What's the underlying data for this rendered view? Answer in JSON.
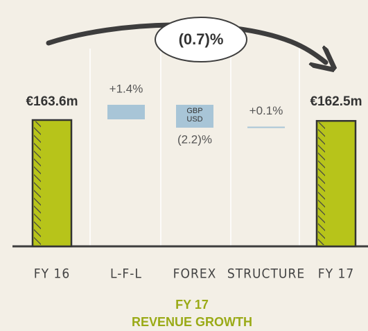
{
  "chart_data": {
    "type": "bridge",
    "title": "FY 17",
    "subtitle": "REVENUE GROWTH",
    "categories": [
      "FY 16",
      "L-F-L",
      "FOREX",
      "STRUCTURE",
      "FY 17"
    ],
    "values": [
      163.6,
      1.4,
      -2.2,
      0.1,
      162.5
    ],
    "value_labels": [
      "€163.6m",
      "+1.4%",
      "(2.2)%",
      "+0.1%",
      "€162.5m"
    ],
    "total_color": "#b7c41a",
    "change_color": "#a8c5d7",
    "overall_change": -0.7,
    "overall_change_label": "(0.7)%",
    "forex_currencies": [
      "GBP",
      "USD"
    ],
    "title_color": "#9aaa16"
  }
}
